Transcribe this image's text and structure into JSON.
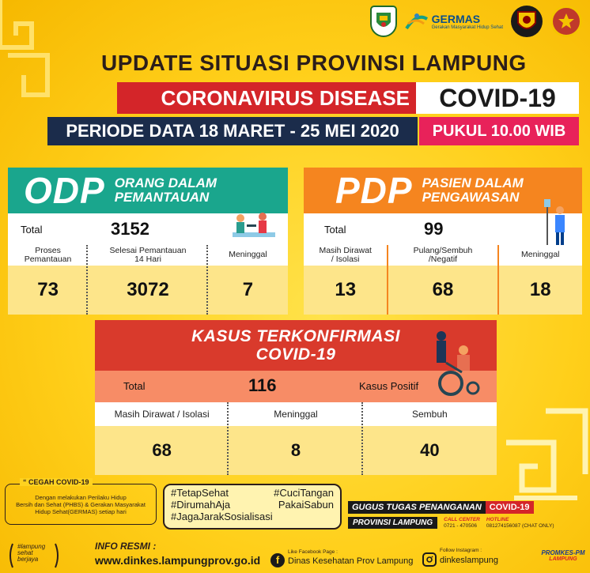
{
  "header": {
    "logos": [
      "lampung-province-crest-icon",
      "germas-logo-icon",
      "police-crest-icon",
      "military-crest-icon"
    ],
    "germas_title": "GERMAS",
    "germas_subtitle": "Gerakan Masyarakat Hidup Sehat",
    "title": "UPDATE SITUASI PROVINSI LAMPUNG",
    "disease_label": "CORONAVIRUS DISEASE",
    "disease_code": "COVID-19",
    "period": "PERIODE DATA 18 MARET - 25 MEI 2020",
    "time": "PUKUL 10.00 WIB"
  },
  "odp": {
    "abbr": "ODP",
    "full_line1": "ORANG DALAM",
    "full_line2": "PEMANTAUAN",
    "total_label": "Total",
    "total_value": "3152",
    "columns": [
      {
        "label_line1": "Proses",
        "label_line2": "Pemantauan",
        "value": "73"
      },
      {
        "label_line1": "Selesai Pemantauan",
        "label_line2": "14 Hari",
        "value": "3072"
      },
      {
        "label_line1": "Meninggal",
        "label_line2": "",
        "value": "7"
      }
    ]
  },
  "pdp": {
    "abbr": "PDP",
    "full_line1": "PASIEN DALAM",
    "full_line2": "PENGAWASAN",
    "total_label": "Total",
    "total_value": "99",
    "columns": [
      {
        "label_line1": "Masih Dirawat",
        "label_line2": "/ Isolasi",
        "value": "13"
      },
      {
        "label_line1": "Pulang/Sembuh",
        "label_line2": "/Negatif",
        "value": "68"
      },
      {
        "label_line1": "Meninggal",
        "label_line2": "",
        "value": "18"
      }
    ]
  },
  "kasus": {
    "title_line1": "KASUS TERKONFIRMASI",
    "title_line2": "COVID-19",
    "total_label": "Total",
    "total_value": "116",
    "total_suffix": "Kasus Positif",
    "columns": [
      {
        "label": "Masih Dirawat / Isolasi",
        "value": "68"
      },
      {
        "label": "Meninggal",
        "value": "8"
      },
      {
        "label": "Sembuh",
        "value": "40"
      }
    ]
  },
  "cegah": {
    "title": "CEGAH COVID-19",
    "line1": "Dengan melakukan Perilaku Hidup",
    "line2": "Bersih dan Sehat (PHBS) & Gerakan Masyarakat",
    "line3": "Hidup Sehat(GERMAS) setiap hari"
  },
  "hashtags": {
    "h1": "#TetapSehat",
    "h2": "#CuciTangan",
    "h3": "#DirumahAja",
    "h4": "PakaiSabun",
    "h5": "#JagaJarakSosialisasi"
  },
  "gugus": {
    "title": "GUGUS TUGAS PENANGANAN",
    "covid": "COVID-19",
    "province": "PROVINSI LAMPUNG",
    "call_center_label": "CALL CENTER",
    "call_center_value": "0721 - 470506",
    "hotline_label": "HOTLINE",
    "hotline_value": "081274156087 (CHAT ONLY)"
  },
  "footer": {
    "brand_text_1": "#lampung",
    "brand_text_2": "sehat",
    "brand_text_3": "berjaya",
    "info_label": "INFO RESMI :",
    "website": "www.dinkes.lampungprov.go.id",
    "facebook_small": "Like Facebook Page :",
    "facebook_page": "Dinas Kesehatan Prov Lampung",
    "instagram_small": "Follow Instagram :",
    "instagram_handle": "dinkeslampung",
    "right_logo_1": "PROMKES-PM",
    "right_logo_2": "LAMPUNG"
  },
  "colors": {
    "background": "#ffcf1a",
    "odp": "#1aa68d",
    "pdp": "#f5851f",
    "kasus": "#d93a2c",
    "kasus_total": "#f78c66",
    "value_cell": "#fde58a",
    "navy": "#1b2c4b",
    "red": "#d42529",
    "pink": "#e8225a"
  }
}
